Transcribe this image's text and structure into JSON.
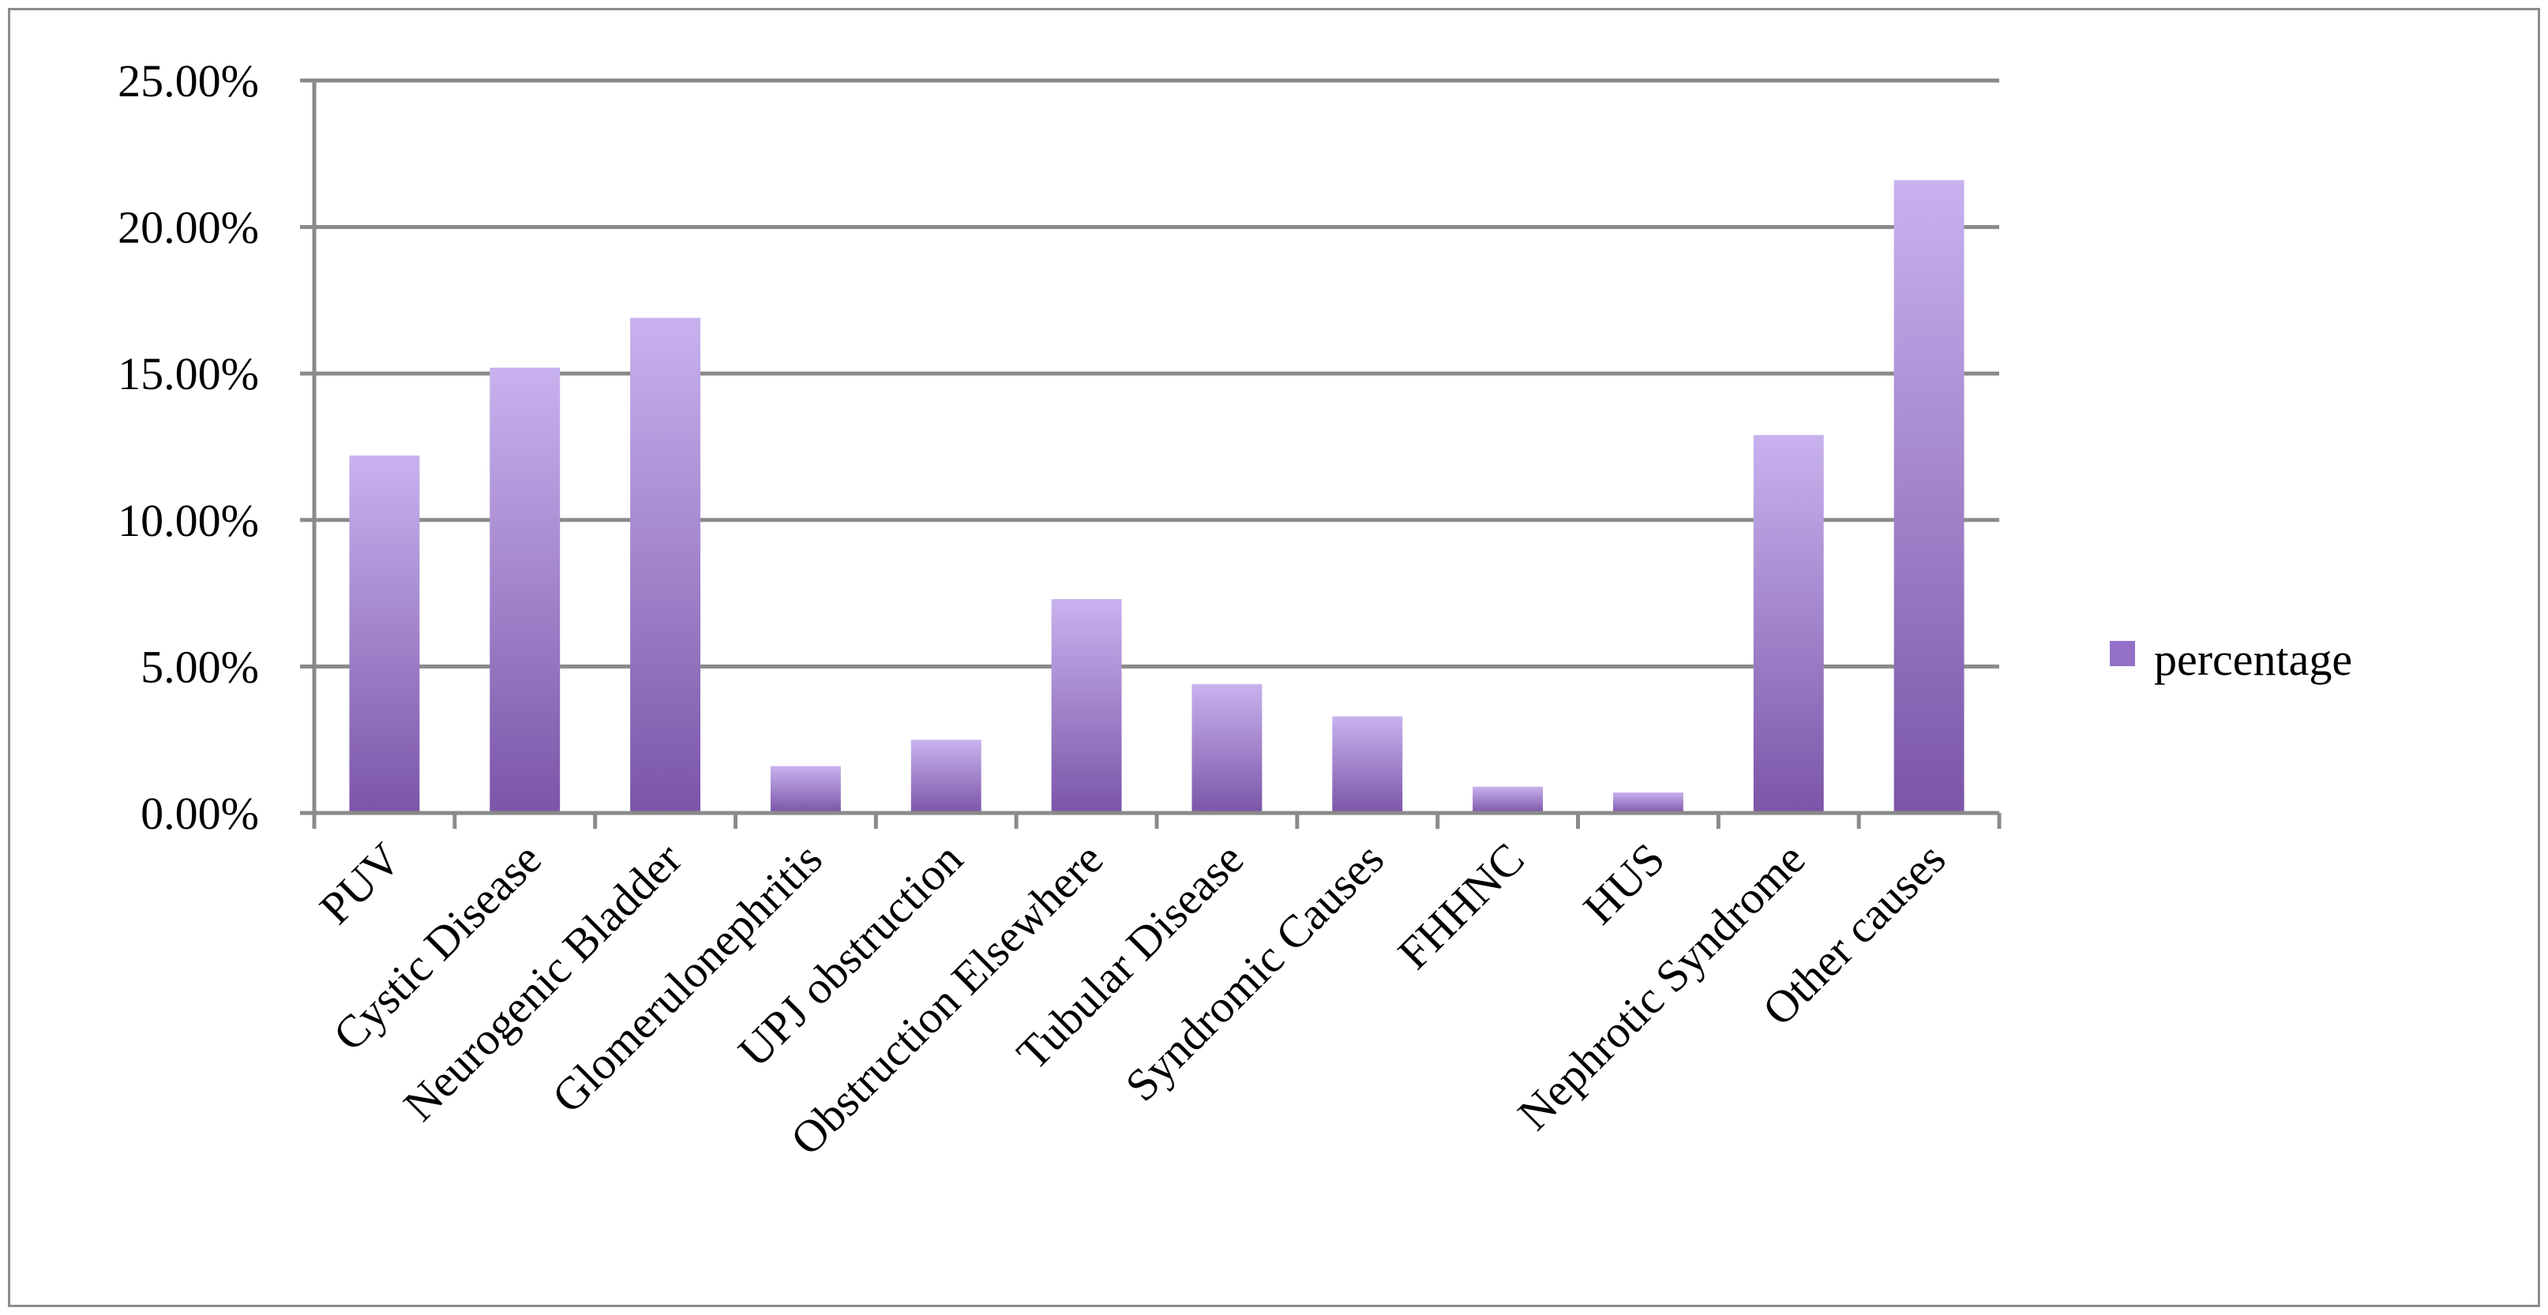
{
  "chart_data": {
    "type": "bar",
    "categories": [
      "PUV",
      "Cystic Disease",
      "Neurogenic Bladder",
      "Glomerulonephritis",
      "UPJ obstruction",
      "Obstruction Elsewhere",
      "Tubular Disease",
      "Syndromic Causes",
      "FHHNC",
      "HUS",
      "Nephrotic Syndrome",
      "Other causes"
    ],
    "series": [
      {
        "name": "percentage",
        "values": [
          12.2,
          15.2,
          16.9,
          1.6,
          2.5,
          7.3,
          4.4,
          3.3,
          0.9,
          0.7,
          12.9,
          21.6
        ]
      }
    ],
    "ylim": [
      0,
      25
    ],
    "ytick_values": [
      0,
      5,
      10,
      15,
      20,
      25
    ],
    "ytick_labels": [
      "0.00%",
      "5.00%",
      "10.00%",
      "15.00%",
      "20.00%",
      "25.00%"
    ],
    "title": "",
    "xlabel": "",
    "ylabel": "",
    "grid": true,
    "legend_position": "right",
    "colors": {
      "bar_top": "#c8b2ee",
      "bar_bottom": "#7b55a8",
      "grid": "#8a8a8a",
      "axis": "#8a8a8a",
      "legend_swatch": "#9370c8"
    }
  }
}
